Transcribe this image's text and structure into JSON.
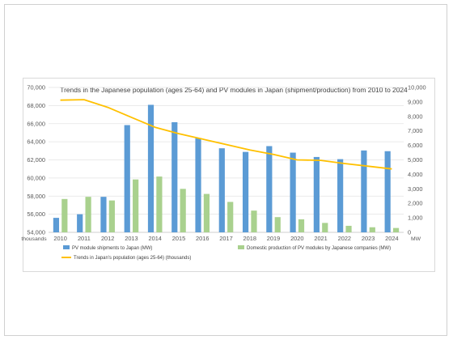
{
  "chart_data": {
    "type": "bar",
    "title": "Trends in the Japanese population (ages 25-64) and PV modules in Japan (shipment/production) from 2010 to 2024",
    "left_axis_unit": "thousands",
    "right_axis_unit": "MW",
    "categories": [
      "2010",
      "2011",
      "2012",
      "2013",
      "2014",
      "2015",
      "2016",
      "2017",
      "2018",
      "2019",
      "2020",
      "2021",
      "2022",
      "2023",
      "2024"
    ],
    "left_axis": {
      "ylim": [
        54000,
        70000
      ],
      "ticks": [
        54000,
        56000,
        58000,
        60000,
        62000,
        64000,
        66000,
        68000,
        70000
      ],
      "tick_labels": [
        "54,000",
        "56,000",
        "58,000",
        "60,000",
        "62,000",
        "64,000",
        "66,000",
        "68,000",
        "70,000"
      ]
    },
    "right_axis": {
      "ylim": [
        0,
        10000
      ],
      "ticks": [
        0,
        1000,
        2000,
        3000,
        4000,
        5000,
        6000,
        7000,
        8000,
        9000,
        10000
      ],
      "tick_labels": [
        "0",
        "1,000",
        "2,000",
        "3,000",
        "4,000",
        "5,000",
        "6,000",
        "7,000",
        "8,000",
        "9,000",
        "10,000"
      ]
    },
    "series": [
      {
        "name": "PV module shipments to Japan (MW)",
        "kind": "bar",
        "axis": "right",
        "color": "#5b9bd5",
        "values": [
          1000,
          1250,
          2450,
          7400,
          8800,
          7600,
          6500,
          5800,
          5550,
          5950,
          5500,
          5200,
          5050,
          5650,
          5600
        ]
      },
      {
        "name": "Domestic production of PV modules by Japanese companies (MW)",
        "kind": "bar",
        "axis": "right",
        "color": "#a9d18e",
        "values": [
          2300,
          2450,
          2200,
          3650,
          3850,
          3000,
          2650,
          2100,
          1500,
          1050,
          900,
          650,
          450,
          350,
          300
        ]
      },
      {
        "name": "Trends in Japan's population (ages 25-64) (thousands)",
        "kind": "line",
        "axis": "left",
        "color": "#ffc000",
        "values": [
          68600,
          68650,
          67800,
          66700,
          65600,
          64900,
          64300,
          63700,
          63100,
          62600,
          62000,
          61950,
          61600,
          61300,
          61000
        ]
      }
    ],
    "grid": true,
    "legend_position": "bottom"
  }
}
